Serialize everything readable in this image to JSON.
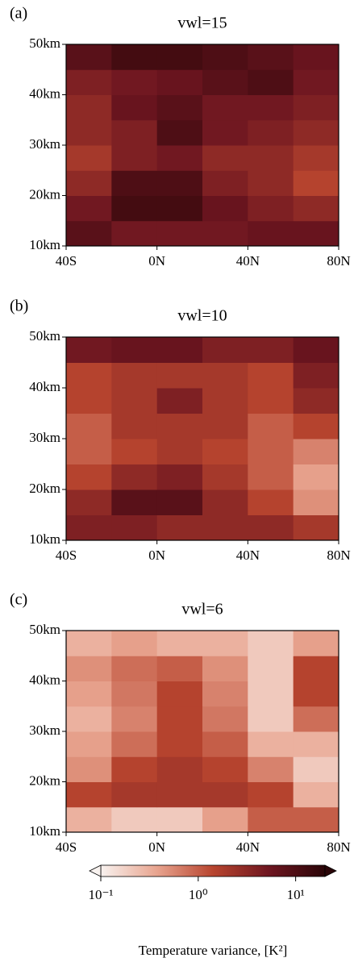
{
  "chart_data": [
    {
      "type": "heatmap",
      "panel_label": "(a)",
      "title": "vwl=15",
      "x": [
        -30,
        -10,
        10,
        30,
        50,
        70
      ],
      "y": [
        12.5,
        17.5,
        22.5,
        27.5,
        32.5,
        37.5,
        42.5,
        47.5
      ],
      "z": [
        [
          8,
          5,
          5,
          5,
          6,
          6
        ],
        [
          5,
          12,
          12,
          6,
          4,
          3
        ],
        [
          3,
          10,
          10,
          4,
          3,
          1.5
        ],
        [
          2,
          4,
          5,
          3,
          3,
          2
        ],
        [
          3,
          4,
          10,
          5,
          4,
          3
        ],
        [
          3,
          6,
          8,
          5,
          5,
          4
        ],
        [
          4,
          5,
          6,
          8,
          10,
          5
        ],
        [
          8,
          12,
          12,
          10,
          8,
          6
        ]
      ],
      "xlim": [
        -40,
        80
      ],
      "ylim": [
        10,
        50
      ],
      "xticks": [
        {
          "value": -40,
          "label": "40S"
        },
        {
          "value": 0,
          "label": "0N"
        },
        {
          "value": 40,
          "label": "40N"
        },
        {
          "value": 80,
          "label": "80N"
        }
      ],
      "yticks": [
        {
          "value": 10,
          "label": "10km"
        },
        {
          "value": 20,
          "label": "20km"
        },
        {
          "value": 30,
          "label": "30km"
        },
        {
          "value": 40,
          "label": "40km"
        },
        {
          "value": 50,
          "label": "50km"
        }
      ]
    },
    {
      "type": "heatmap",
      "panel_label": "(b)",
      "title": "vwl=10",
      "x": [
        -30,
        -10,
        10,
        30,
        50,
        70
      ],
      "y": [
        12.5,
        17.5,
        22.5,
        27.5,
        32.5,
        37.5,
        42.5,
        47.5
      ],
      "z": [
        [
          4,
          4,
          3,
          3,
          3,
          2
        ],
        [
          3,
          8,
          8,
          3,
          1.5,
          0.5
        ],
        [
          1.5,
          3,
          4,
          2,
          1,
          0.4
        ],
        [
          1,
          1.5,
          2,
          1.5,
          1,
          0.6
        ],
        [
          1,
          2,
          2,
          2,
          1,
          1.5
        ],
        [
          1.5,
          2,
          4,
          2,
          1.5,
          3
        ],
        [
          1.5,
          2,
          2,
          2,
          1.5,
          4
        ],
        [
          5,
          6,
          6,
          4,
          4,
          6
        ]
      ],
      "xlim": [
        -40,
        80
      ],
      "ylim": [
        10,
        50
      ],
      "xticks": [
        {
          "value": -40,
          "label": "40S"
        },
        {
          "value": 0,
          "label": "0N"
        },
        {
          "value": 40,
          "label": "40N"
        },
        {
          "value": 80,
          "label": "80N"
        }
      ],
      "yticks": [
        {
          "value": 10,
          "label": "10km"
        },
        {
          "value": 20,
          "label": "20km"
        },
        {
          "value": 30,
          "label": "30km"
        },
        {
          "value": 40,
          "label": "40km"
        },
        {
          "value": 50,
          "label": "50km"
        }
      ]
    },
    {
      "type": "heatmap",
      "panel_label": "(c)",
      "title": "vwl=6",
      "x": [
        -30,
        -10,
        10,
        30,
        50,
        70
      ],
      "y": [
        12.5,
        17.5,
        22.5,
        27.5,
        32.5,
        37.5,
        42.5,
        47.5
      ],
      "z": [
        [
          0.3,
          0.2,
          0.2,
          0.4,
          1,
          1
        ],
        [
          1.5,
          2,
          2,
          2,
          1.5,
          0.3
        ],
        [
          0.5,
          1.5,
          2,
          1.5,
          0.6,
          0.2
        ],
        [
          0.4,
          0.8,
          1.5,
          1,
          0.3,
          0.3
        ],
        [
          0.3,
          0.6,
          1.5,
          0.7,
          0.2,
          0.8
        ],
        [
          0.4,
          0.7,
          1.5,
          0.6,
          0.2,
          1.5
        ],
        [
          0.5,
          0.8,
          1,
          0.5,
          0.2,
          1.5
        ],
        [
          0.3,
          0.4,
          0.3,
          0.3,
          0.2,
          0.4
        ]
      ],
      "xlim": [
        -40,
        80
      ],
      "ylim": [
        10,
        50
      ],
      "xticks": [
        {
          "value": -40,
          "label": "40S"
        },
        {
          "value": 0,
          "label": "0N"
        },
        {
          "value": 40,
          "label": "40N"
        },
        {
          "value": 80,
          "label": "80N"
        }
      ],
      "yticks": [
        {
          "value": 10,
          "label": "10km"
        },
        {
          "value": 20,
          "label": "20km"
        },
        {
          "value": 30,
          "label": "30km"
        },
        {
          "value": 40,
          "label": "40km"
        },
        {
          "value": 50,
          "label": "50km"
        }
      ]
    },
    {
      "type": "colorbar",
      "label": "Temperature variance, [K²]",
      "log": true,
      "clim": [
        0.1,
        20
      ],
      "cticks": [
        {
          "value": 0.1,
          "label": "10⁻¹"
        },
        {
          "value": 1,
          "label": "10⁰"
        },
        {
          "value": 10,
          "label": "10¹"
        }
      ],
      "colormap": [
        "#f8f2ef",
        "#e8a48f",
        "#b8452f",
        "#6e1620",
        "#2a0508"
      ]
    }
  ]
}
